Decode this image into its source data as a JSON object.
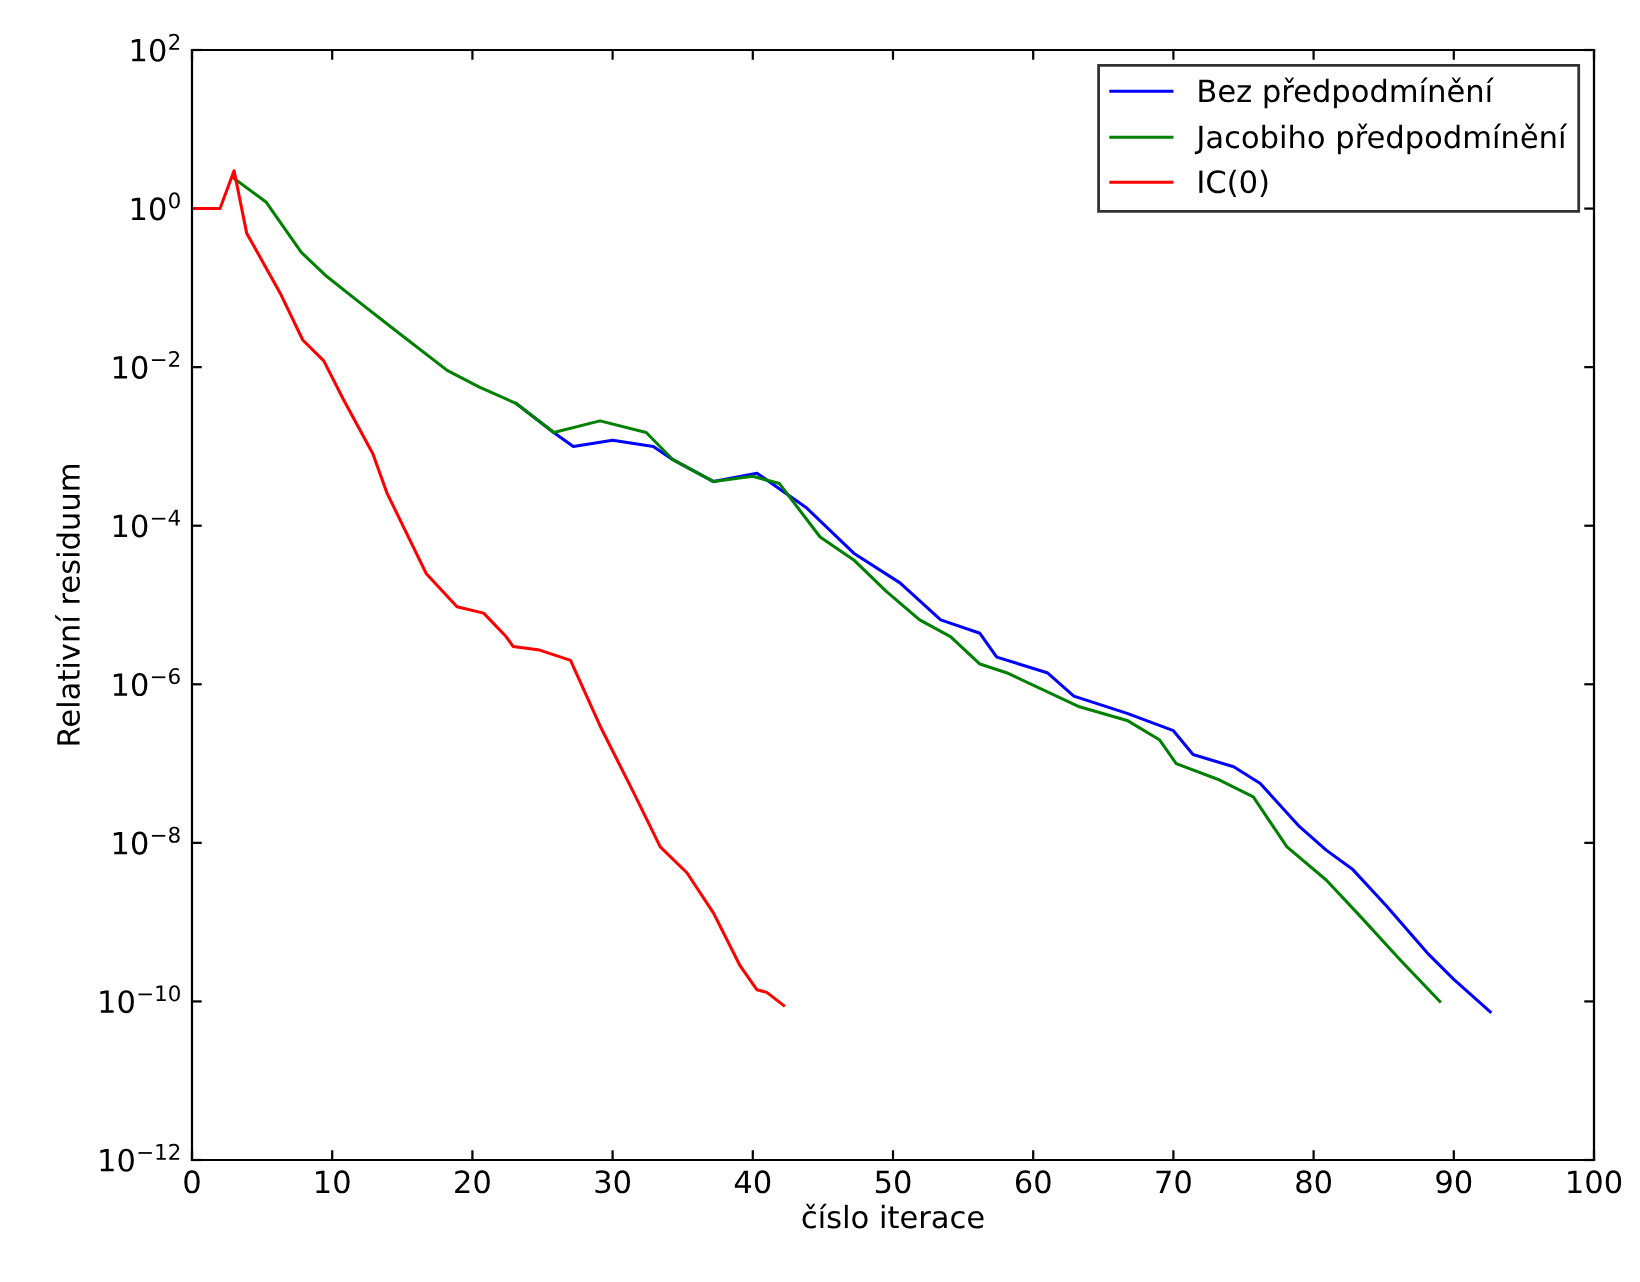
{
  "chart_data": {
    "type": "line",
    "xlabel": "číslo iterace",
    "ylabel": "Relativní residuum",
    "log": "y",
    "legend": "top right",
    "grid": false,
    "marker": "none",
    "line_style": "solid",
    "xlim": [
      0,
      100
    ],
    "xticks": [
      0,
      10,
      20,
      30,
      40,
      50,
      60,
      70,
      80,
      90,
      100
    ],
    "ylim": [
      1e-12,
      100
    ],
    "yticks": [
      {
        "value": 1e-12,
        "label": "10$^{−12}$"
      },
      {
        "value": 1e-10,
        "label": "10$^{−10}$"
      },
      {
        "value": 1e-08,
        "label": "10$^{−8}$"
      },
      {
        "value": 1e-06,
        "label": "10$^{−6}$"
      },
      {
        "value": 0.0001,
        "label": "10$^{−4}$"
      },
      {
        "value": 0.01,
        "label": "10$^{−2}$"
      },
      {
        "value": 1,
        "label": "10$^{0}$"
      },
      {
        "value": 100,
        "label": "10$^{2}$"
      }
    ],
    "series": [
      {
        "name": "Bez předpodmínění",
        "color": "#0000ff",
        "x": [
          23.1,
          25.8,
          27.2,
          30,
          32.9,
          34.3,
          37.2,
          40.3,
          43.8,
          47.2,
          50.5,
          53.4,
          56.2,
          57.4,
          61,
          62.9,
          66.7,
          70,
          71.4,
          74.3,
          76.2,
          79,
          80.9,
          82.8,
          85.2,
          88.1,
          90,
          92.6
        ],
        "values": [
          0.0035,
          0.0015,
          0.001,
          0.0012,
          0.001,
          0.00068,
          0.00036,
          0.00046,
          0.00017,
          4.5e-05,
          1.9e-05,
          6.5e-06,
          4.4e-06,
          2.2e-06,
          1.4e-06,
          7.1e-07,
          4.3e-07,
          2.6e-07,
          1.3e-07,
          9.1e-08,
          5.6e-08,
          1.6e-08,
          8.1e-09,
          4.6e-09,
          1.6e-09,
          4.1e-10,
          1.9e-10,
          7.4e-11
        ]
      },
      {
        "name": "Jacobiho předpodmínění",
        "color": "#008000",
        "x": [
          3,
          5.3,
          7.8,
          9.6,
          11.7,
          14.4,
          18.2,
          20.5,
          23.1,
          25.8,
          29.1,
          32.4,
          34.3,
          37.2,
          40,
          41.9,
          44.8,
          47.2,
          49.5,
          51.9,
          54.1,
          56.2,
          58.1,
          63.3,
          66.7,
          69,
          70.2,
          73.3,
          75.7,
          78.1,
          80.9,
          83.3,
          86.2,
          89
        ],
        "values": [
          2.4,
          1.2,
          0.28,
          0.14,
          0.071,
          0.03,
          0.0091,
          0.0056,
          0.0035,
          0.0015,
          0.0021,
          0.0015,
          0.00068,
          0.00036,
          0.00042,
          0.00034,
          7.2e-05,
          3.7e-05,
          1.5e-05,
          6.5e-06,
          4e-06,
          1.8e-06,
          1.4e-06,
          5.2e-07,
          3.5e-07,
          2e-07,
          1e-07,
          6.2e-08,
          3.8e-08,
          8.9e-09,
          3.4e-09,
          1.2e-09,
          3.3e-10,
          1e-10
        ]
      },
      {
        "name": "IC(0)",
        "color": "#ff0000",
        "x": [
          0,
          1,
          2,
          3,
          3.9,
          6.3,
          7.9,
          9.4,
          10.8,
          12.9,
          13.9,
          16.7,
          18.9,
          20.8,
          22.4,
          22.9,
          24.8,
          27,
          29.1,
          31.5,
          33.4,
          35.3,
          37.2,
          39.1,
          40.3,
          41,
          42.2
        ],
        "values": [
          1,
          1,
          1,
          3.0,
          0.49,
          0.085,
          0.022,
          0.012,
          0.0039,
          0.00081,
          0.00026,
          2.5e-05,
          9.5e-06,
          7.9e-06,
          4e-06,
          3e-06,
          2.7e-06,
          2e-06,
          3e-07,
          4.3e-08,
          8.9e-09,
          4.2e-09,
          1.3e-09,
          2.8e-10,
          1.4e-10,
          1.3e-10,
          8.9e-11
        ]
      }
    ]
  }
}
